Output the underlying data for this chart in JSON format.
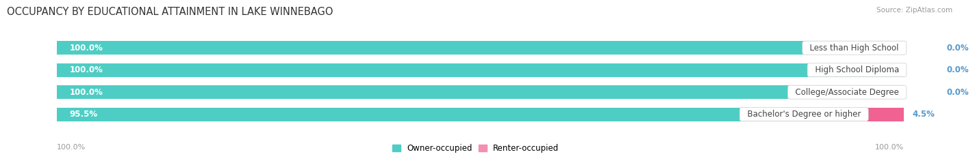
{
  "title": "OCCUPANCY BY EDUCATIONAL ATTAINMENT IN LAKE WINNEBAGO",
  "source": "Source: ZipAtlas.com",
  "categories": [
    "Less than High School",
    "High School Diploma",
    "College/Associate Degree",
    "Bachelor's Degree or higher"
  ],
  "owner_values": [
    100.0,
    100.0,
    100.0,
    95.5
  ],
  "renter_values": [
    0.0,
    0.0,
    0.0,
    4.5
  ],
  "owner_color": "#4ECDC4",
  "renter_color": "#F48FB1",
  "renter_color_strong": "#F06292",
  "owner_label": "Owner-occupied",
  "renter_label": "Renter-occupied",
  "axis_left_label": "100.0%",
  "axis_right_label": "100.0%",
  "title_fontsize": 10.5,
  "label_fontsize": 8.5,
  "cat_fontsize": 8.5,
  "bar_height": 0.62,
  "figsize": [
    14.06,
    2.32
  ],
  "dpi": 100,
  "background_color": "#FFFFFF",
  "bar_background": "#E4E4E4",
  "owner_text_color": "#FFFFFF",
  "category_text_color": "#444444",
  "renter_text_color": "#5599CC"
}
